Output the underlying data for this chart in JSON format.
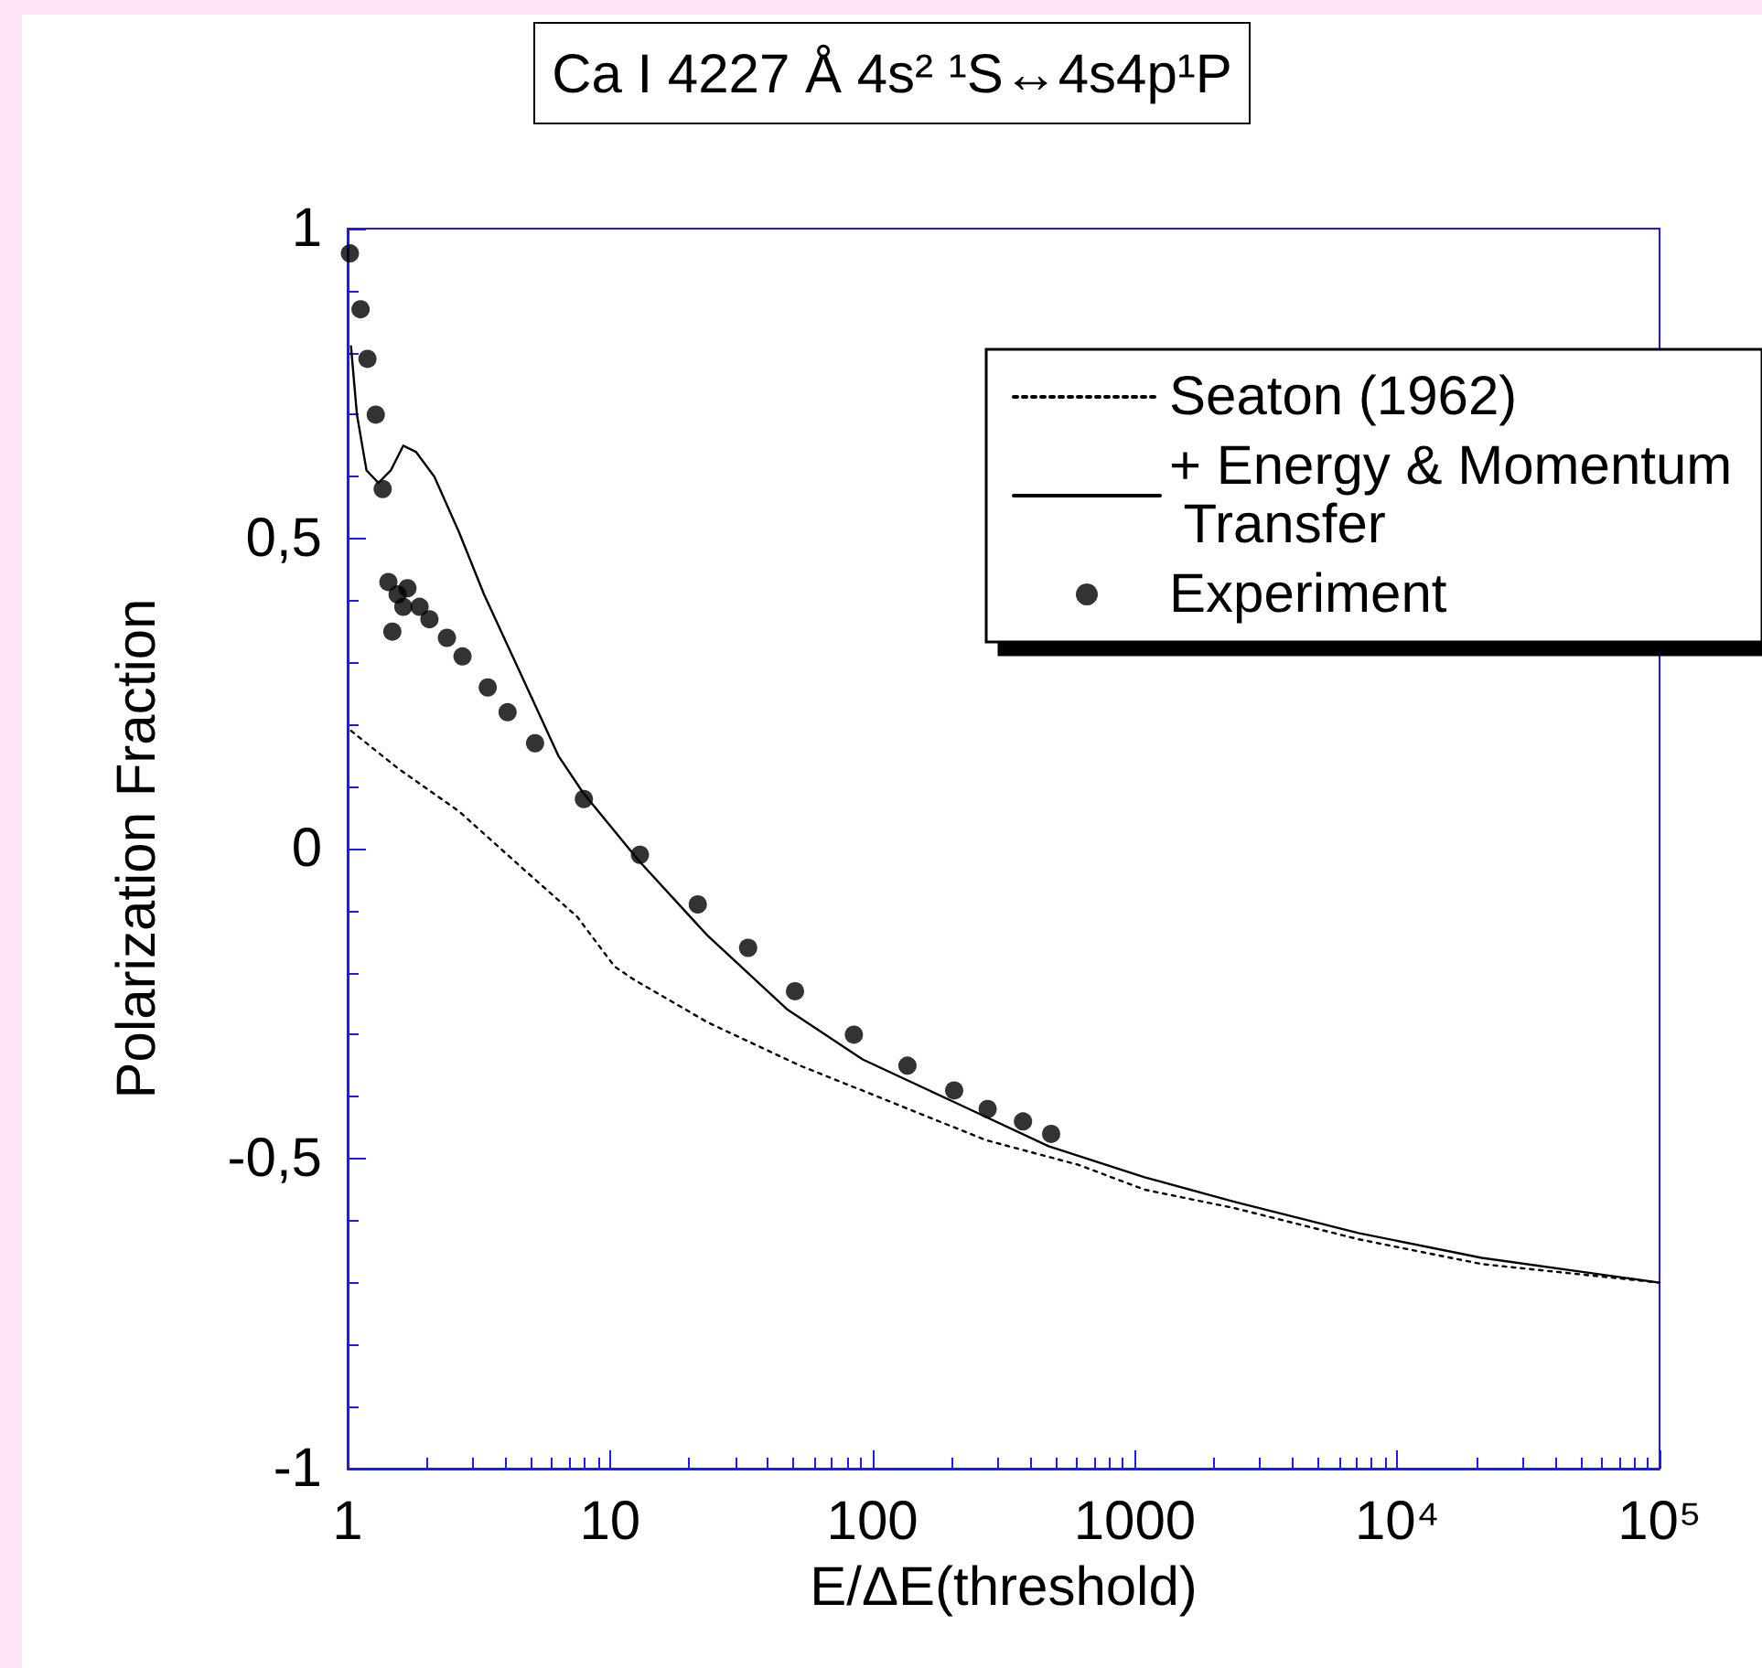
{
  "chart_data": {
    "type": "line",
    "title": "Ca I 4227 Å 4s² ¹S↔4s4p¹P",
    "xlabel": "E/ΔE(threshold)",
    "ylabel": "Polarization Fraction",
    "log": "x",
    "xlim": [
      1,
      100000
    ],
    "xticks": [
      1,
      10,
      100,
      1000,
      {
        "value": 10000,
        "label": "10⁴"
      },
      {
        "value": 100000,
        "label": "10⁵"
      }
    ],
    "ylim": [
      -1,
      1
    ],
    "yticks": [
      {
        "value": -1,
        "label": "-1"
      },
      {
        "value": -0.5,
        "label": "-0,5"
      },
      {
        "value": 0,
        "label": "0"
      },
      {
        "value": 0.5,
        "label": "0,5"
      },
      {
        "value": 1,
        "label": "1"
      }
    ],
    "grid": false,
    "legend": "top right",
    "series": [
      {
        "name": "Seaton (1962)",
        "color": "#000000",
        "line_style": "dotted",
        "marker": "none",
        "x": [
          1.03,
          1.55,
          2.66,
          4.59,
          7.5,
          10.4,
          12.2,
          23.5,
          53,
          120,
          270,
          610,
          1090,
          2410,
          7120,
          21000,
          100000
        ],
        "values": [
          0.19,
          0.13,
          0.06,
          -0.03,
          -0.11,
          -0.19,
          -0.21,
          -0.28,
          -0.35,
          -0.41,
          -0.47,
          -0.51,
          -0.55,
          -0.58,
          -0.63,
          -0.67,
          -0.7
        ]
      },
      {
        "name": "+ Energy & Momentum Transfer",
        "color": "#000000",
        "line_style": "solid",
        "marker": "none",
        "x": [
          1.03,
          1.085,
          1.18,
          1.31,
          1.46,
          1.63,
          1.82,
          2.14,
          2.66,
          3.31,
          4.59,
          6.35,
          7.9,
          12.9,
          23.5,
          47.6,
          91.8,
          208,
          469,
          1090,
          2410,
          7120,
          21000,
          100000
        ],
        "values": [
          0.81,
          0.7,
          0.61,
          0.59,
          0.61,
          0.65,
          0.64,
          0.6,
          0.51,
          0.41,
          0.28,
          0.15,
          0.09,
          -0.02,
          -0.14,
          -0.26,
          -0.34,
          -0.41,
          -0.48,
          -0.53,
          -0.57,
          -0.62,
          -0.66,
          -0.7
        ]
      },
      {
        "name": "Experiment",
        "type": "scatter",
        "color": "#000000",
        "marker": "circle",
        "x": [
          1.02,
          1.12,
          1.19,
          1.28,
          1.36,
          1.43,
          1.48,
          1.55,
          1.63,
          1.69,
          1.88,
          2.05,
          2.39,
          2.74,
          3.42,
          4.07,
          5.18,
          7.95,
          13,
          21.6,
          33.6,
          50.7,
          85,
          136,
          205,
          275,
          375,
          480
        ],
        "values": [
          0.96,
          0.87,
          0.79,
          0.7,
          0.58,
          0.43,
          0.35,
          0.41,
          0.39,
          0.42,
          0.39,
          0.37,
          0.34,
          0.31,
          0.26,
          0.22,
          0.17,
          0.08,
          -0.01,
          -0.09,
          -0.16,
          -0.23,
          -0.3,
          -0.35,
          -0.39,
          -0.42,
          -0.44,
          -0.46
        ]
      }
    ]
  }
}
